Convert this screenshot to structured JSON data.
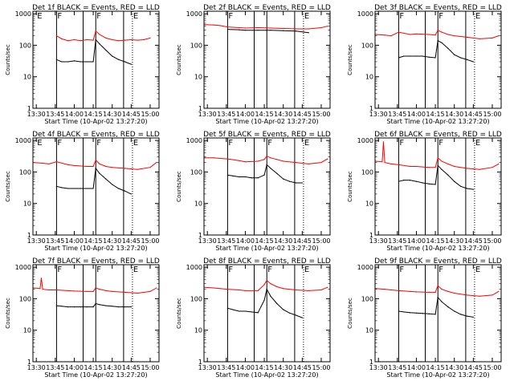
{
  "figure": {
    "shared_ylabel": "Counts/sec",
    "shared_xlabel": "Start Time (10-Apr-02 13:27:20)",
    "x_tick_labels": [
      "13:30",
      "13:45",
      "14:00",
      "14:15",
      "14:30",
      "14:45",
      "15:00"
    ],
    "y_tick_labels": [
      "1",
      "10",
      "100",
      "1000"
    ],
    "colors": {
      "events": "#000000",
      "lld": "#ff0000",
      "axes": "#000000",
      "background": "#ffffff"
    }
  },
  "chart_data": [
    {
      "type": "line",
      "title": "Det 1f BLACK = Events, RED = LLD",
      "xlabel": "Start Time (10-Apr-02 13:27:20)",
      "ylabel": "Counts/sec",
      "xlim": [
        "13:27:20",
        "15:07:00"
      ],
      "ylim": [
        1,
        1200
      ],
      "yscale": "log",
      "x_ticks": [
        "13:30",
        "13:45",
        "14:00",
        "14:15",
        "14:30",
        "14:45",
        "15:00"
      ],
      "marker_letters": [
        "E",
        "F",
        "F",
        "E"
      ],
      "marker_times": [
        "13:30",
        "13:46",
        "14:17",
        "14:46"
      ],
      "solid_lines": [
        "13:46",
        "14:07",
        "14:17",
        "14:39"
      ],
      "dotted_lines": [
        "14:46"
      ],
      "series": [
        {
          "name": "LLD",
          "color": "#ff0000",
          "x": [
            "13:46",
            "13:50",
            "13:55",
            "14:00",
            "14:05",
            "14:10",
            "14:15",
            "14:17",
            "14:20",
            "14:25",
            "14:30",
            "14:35",
            "14:40",
            "14:45",
            "14:50",
            "14:55",
            "15:00"
          ],
          "y": [
            200,
            160,
            140,
            150,
            140,
            150,
            145,
            280,
            220,
            170,
            150,
            140,
            145,
            150,
            145,
            150,
            170
          ]
        },
        {
          "name": "Events",
          "color": "#000000",
          "x": [
            "13:46",
            "13:50",
            "13:55",
            "14:00",
            "14:05",
            "14:10",
            "14:15",
            "14:17",
            "14:20",
            "14:25",
            "14:30",
            "14:35",
            "14:40",
            "14:45"
          ],
          "y": [
            35,
            30,
            30,
            32,
            30,
            30,
            30,
            150,
            110,
            70,
            45,
            35,
            30,
            25
          ]
        }
      ]
    },
    {
      "type": "line",
      "title": "Det 2f BLACK = Events, RED = LLD",
      "xlabel": "Start Time (10-Apr-02 13:27:20)",
      "ylabel": "Counts/sec",
      "xlim": [
        "13:27:20",
        "15:07:00"
      ],
      "ylim": [
        1,
        1200
      ],
      "yscale": "log",
      "x_ticks": [
        "13:30",
        "13:45",
        "14:00",
        "14:15",
        "14:30",
        "14:45",
        "15:00"
      ],
      "marker_letters": [
        "F",
        "E"
      ],
      "marker_times": [
        "13:46",
        "14:46"
      ],
      "solid_lines": [
        "13:46",
        "14:07",
        "14:17",
        "14:39"
      ],
      "dotted_lines": [
        "14:46"
      ],
      "series": [
        {
          "name": "LLD",
          "color": "#ff0000",
          "x": [
            "13:28",
            "13:35",
            "13:40",
            "13:46",
            "13:55",
            "14:00",
            "14:10",
            "14:20",
            "14:30",
            "14:40",
            "14:50",
            "15:00",
            "15:05"
          ],
          "y": [
            450,
            440,
            420,
            380,
            360,
            350,
            360,
            350,
            340,
            330,
            330,
            360,
            400
          ]
        },
        {
          "name": "Events",
          "color": "#000000",
          "x": [
            "13:46",
            "13:55",
            "14:00",
            "14:10",
            "14:20",
            "14:30",
            "14:40",
            "14:50"
          ],
          "y": [
            320,
            310,
            300,
            300,
            300,
            290,
            280,
            250
          ]
        }
      ]
    },
    {
      "type": "line",
      "title": "Det 3f BLACK = Events, RED = LLD",
      "xlabel": "Start Time (10-Apr-02 13:27:20)",
      "ylabel": "Counts/sec",
      "xlim": [
        "13:27:20",
        "15:07:00"
      ],
      "ylim": [
        1,
        1200
      ],
      "yscale": "log",
      "x_ticks": [
        "13:30",
        "13:45",
        "14:00",
        "14:15",
        "14:30",
        "14:45",
        "15:00"
      ],
      "marker_letters": [
        "F",
        "F",
        "E"
      ],
      "marker_times": [
        "13:46",
        "14:17",
        "14:46"
      ],
      "solid_lines": [
        "13:46",
        "14:07",
        "14:17",
        "14:39"
      ],
      "dotted_lines": [
        "14:46"
      ],
      "series": [
        {
          "name": "LLD",
          "color": "#ff0000",
          "x": [
            "13:28",
            "13:35",
            "13:40",
            "13:46",
            "13:55",
            "14:00",
            "14:10",
            "14:15",
            "14:17",
            "14:20",
            "14:25",
            "14:30",
            "14:40",
            "14:50",
            "15:00",
            "15:05"
          ],
          "y": [
            220,
            210,
            200,
            260,
            220,
            230,
            220,
            210,
            300,
            260,
            220,
            200,
            180,
            160,
            170,
            200
          ]
        },
        {
          "name": "Events",
          "color": "#000000",
          "x": [
            "13:46",
            "13:50",
            "13:55",
            "14:00",
            "14:05",
            "14:10",
            "14:15",
            "14:17",
            "14:20",
            "14:25",
            "14:30",
            "14:35",
            "14:40",
            "14:45"
          ],
          "y": [
            40,
            45,
            45,
            45,
            45,
            42,
            40,
            140,
            120,
            80,
            50,
            40,
            35,
            30
          ]
        }
      ]
    },
    {
      "type": "line",
      "title": "Det 4f BLACK = Events, RED = LLD",
      "xlabel": "Start Time (10-Apr-02 13:27:20)",
      "ylabel": "Counts/sec",
      "xlim": [
        "13:27:20",
        "15:07:00"
      ],
      "ylim": [
        1,
        1200
      ],
      "yscale": "log",
      "x_ticks": [
        "13:30",
        "13:45",
        "14:00",
        "14:15",
        "14:30",
        "14:45",
        "15:00"
      ],
      "marker_letters": [
        "E",
        "F",
        "F",
        "E"
      ],
      "marker_times": [
        "13:30",
        "13:46",
        "14:17",
        "14:46"
      ],
      "solid_lines": [
        "13:46",
        "14:07",
        "14:17",
        "14:39"
      ],
      "dotted_lines": [
        "14:46"
      ],
      "series": [
        {
          "name": "LLD",
          "color": "#ff0000",
          "x": [
            "13:28",
            "13:35",
            "13:40",
            "13:46",
            "13:55",
            "14:00",
            "14:10",
            "14:15",
            "14:17",
            "14:20",
            "14:25",
            "14:30",
            "14:40",
            "14:50",
            "15:00",
            "15:05"
          ],
          "y": [
            200,
            190,
            180,
            210,
            170,
            160,
            150,
            150,
            240,
            180,
            150,
            140,
            130,
            120,
            140,
            200
          ]
        },
        {
          "name": "Events",
          "color": "#000000",
          "x": [
            "13:46",
            "13:50",
            "13:55",
            "14:00",
            "14:05",
            "14:10",
            "14:15",
            "14:17",
            "14:20",
            "14:25",
            "14:30",
            "14:35",
            "14:40",
            "14:45"
          ],
          "y": [
            35,
            32,
            30,
            30,
            30,
            30,
            30,
            130,
            90,
            60,
            40,
            30,
            25,
            20
          ]
        }
      ]
    },
    {
      "type": "line",
      "title": "Det 5f BLACK = Events, RED = LLD",
      "xlabel": "Start Time (10-Apr-02 13:27:20)",
      "ylabel": "Counts/sec",
      "xlim": [
        "13:27:20",
        "15:07:00"
      ],
      "ylim": [
        1,
        1200
      ],
      "yscale": "log",
      "x_ticks": [
        "13:30",
        "13:45",
        "14:00",
        "14:15",
        "14:30",
        "14:45",
        "15:00"
      ],
      "marker_letters": [
        "F",
        "F",
        "E"
      ],
      "marker_times": [
        "13:46",
        "14:17",
        "14:46"
      ],
      "solid_lines": [
        "13:46",
        "14:07",
        "14:17",
        "14:39"
      ],
      "dotted_lines": [
        "14:46"
      ],
      "series": [
        {
          "name": "LLD",
          "color": "#ff0000",
          "x": [
            "13:28",
            "13:35",
            "13:40",
            "13:46",
            "13:55",
            "14:00",
            "14:10",
            "14:15",
            "14:17",
            "14:20",
            "14:25",
            "14:30",
            "14:40",
            "14:50",
            "15:00",
            "15:05"
          ],
          "y": [
            280,
            280,
            270,
            260,
            230,
            210,
            220,
            250,
            320,
            280,
            250,
            220,
            200,
            180,
            200,
            260
          ]
        },
        {
          "name": "Events",
          "color": "#000000",
          "x": [
            "13:46",
            "13:50",
            "13:55",
            "14:00",
            "14:05",
            "14:10",
            "14:15",
            "14:17",
            "14:20",
            "14:25",
            "14:30",
            "14:35",
            "14:40",
            "14:45"
          ],
          "y": [
            80,
            75,
            70,
            70,
            65,
            65,
            80,
            170,
            130,
            90,
            60,
            50,
            45,
            45
          ]
        }
      ]
    },
    {
      "type": "line",
      "title": "Det 6f BLACK = Events, RED = LLD",
      "xlabel": "Start Time (10-Apr-02 13:27:20)",
      "ylabel": "Counts/sec",
      "xlim": [
        "13:27:20",
        "15:07:00"
      ],
      "ylim": [
        1,
        1200
      ],
      "yscale": "log",
      "x_ticks": [
        "13:30",
        "13:45",
        "14:00",
        "14:15",
        "14:30",
        "14:45",
        "15:00"
      ],
      "marker_letters": [
        "F",
        "F",
        "E"
      ],
      "marker_times": [
        "13:46",
        "14:17",
        "14:46"
      ],
      "solid_lines": [
        "13:46",
        "14:07",
        "14:17",
        "14:39"
      ],
      "dotted_lines": [
        "14:46"
      ],
      "series": [
        {
          "name": "LLD",
          "color": "#ff0000",
          "x": [
            "13:28",
            "13:33",
            "13:34",
            "13:35",
            "13:40",
            "13:46",
            "13:55",
            "14:00",
            "14:10",
            "14:15",
            "14:17",
            "14:20",
            "14:25",
            "14:30",
            "14:40",
            "14:50",
            "15:00",
            "15:05"
          ],
          "y": [
            220,
            210,
            900,
            200,
            180,
            170,
            150,
            150,
            140,
            140,
            280,
            220,
            180,
            150,
            130,
            120,
            140,
            180
          ]
        },
        {
          "name": "Events",
          "color": "#000000",
          "x": [
            "13:46",
            "13:50",
            "13:55",
            "14:00",
            "14:05",
            "14:10",
            "14:15",
            "14:17",
            "14:20",
            "14:25",
            "14:30",
            "14:35",
            "14:40",
            "14:45"
          ],
          "y": [
            50,
            55,
            55,
            50,
            45,
            42,
            40,
            160,
            120,
            80,
            50,
            35,
            30,
            28
          ]
        }
      ]
    },
    {
      "type": "line",
      "title": "Det 7f BLACK = Events, RED = LLD",
      "xlabel": "Start Time (10-Apr-02 13:27:20)",
      "ylabel": "Counts/sec",
      "xlim": [
        "13:27:20",
        "15:07:00"
      ],
      "ylim": [
        1,
        1200
      ],
      "yscale": "log",
      "x_ticks": [
        "13:30",
        "13:45",
        "14:00",
        "14:15",
        "14:30",
        "14:45",
        "15:00"
      ],
      "marker_letters": [
        "F",
        "F",
        "E"
      ],
      "marker_times": [
        "13:46",
        "14:17",
        "14:46"
      ],
      "solid_lines": [
        "13:46",
        "14:07",
        "14:17",
        "14:39"
      ],
      "dotted_lines": [
        "14:46"
      ],
      "series": [
        {
          "name": "LLD",
          "color": "#ff0000",
          "x": [
            "13:28",
            "13:33",
            "13:34",
            "13:35",
            "13:40",
            "13:46",
            "13:55",
            "14:00",
            "14:10",
            "14:15",
            "14:17",
            "14:20",
            "14:25",
            "14:30",
            "14:40",
            "14:50",
            "15:00",
            "15:05"
          ],
          "y": [
            220,
            210,
            450,
            200,
            190,
            190,
            180,
            175,
            170,
            170,
            220,
            200,
            180,
            170,
            160,
            150,
            170,
            220
          ]
        },
        {
          "name": "Events",
          "color": "#000000",
          "x": [
            "13:46",
            "13:50",
            "13:55",
            "14:00",
            "14:05",
            "14:10",
            "14:15",
            "14:17",
            "14:20",
            "14:25",
            "14:30",
            "14:35",
            "14:40",
            "14:45"
          ],
          "y": [
            60,
            58,
            55,
            55,
            55,
            55,
            55,
            70,
            65,
            60,
            58,
            55,
            55,
            55
          ]
        }
      ]
    },
    {
      "type": "line",
      "title": "Det 8f BLACK = Events, RED = LLD",
      "xlabel": "Start Time (10-Apr-02 13:27:20)",
      "ylabel": "Counts/sec",
      "xlim": [
        "13:27:20",
        "15:07:00"
      ],
      "ylim": [
        1,
        1200
      ],
      "yscale": "log",
      "x_ticks": [
        "13:30",
        "13:45",
        "14:00",
        "14:15",
        "14:30",
        "14:45",
        "15:00"
      ],
      "marker_letters": [
        "F",
        "F",
        "E"
      ],
      "marker_times": [
        "13:46",
        "14:17",
        "14:46"
      ],
      "solid_lines": [
        "13:46",
        "14:07",
        "14:17",
        "14:39"
      ],
      "dotted_lines": [
        "14:46"
      ],
      "series": [
        {
          "name": "LLD",
          "color": "#ff0000",
          "x": [
            "13:28",
            "13:35",
            "13:40",
            "13:46",
            "13:55",
            "14:00",
            "14:10",
            "14:15",
            "14:17",
            "14:20",
            "14:25",
            "14:30",
            "14:40",
            "14:50",
            "15:00",
            "15:05"
          ],
          "y": [
            230,
            220,
            210,
            200,
            190,
            180,
            180,
            280,
            380,
            300,
            240,
            210,
            190,
            180,
            190,
            230
          ]
        },
        {
          "name": "Events",
          "color": "#000000",
          "x": [
            "13:46",
            "13:50",
            "13:55",
            "14:00",
            "14:05",
            "14:10",
            "14:15",
            "14:17",
            "14:20",
            "14:25",
            "14:30",
            "14:35",
            "14:40",
            "14:45"
          ],
          "y": [
            50,
            45,
            40,
            40,
            38,
            36,
            90,
            200,
            120,
            70,
            45,
            35,
            30,
            25
          ]
        }
      ]
    },
    {
      "type": "line",
      "title": "Det 9f BLACK = Events, RED = LLD",
      "xlabel": "Start Time (10-Apr-02 13:27:20)",
      "ylabel": "Counts/sec",
      "xlim": [
        "13:27:20",
        "15:07:00"
      ],
      "ylim": [
        1,
        1200
      ],
      "yscale": "log",
      "x_ticks": [
        "13:30",
        "13:45",
        "14:00",
        "14:15",
        "14:30",
        "14:45",
        "15:00"
      ],
      "marker_letters": [
        "F",
        "F",
        "E"
      ],
      "marker_times": [
        "13:46",
        "14:17",
        "14:46"
      ],
      "solid_lines": [
        "13:46",
        "14:07",
        "14:17",
        "14:39"
      ],
      "dotted_lines": [
        "14:46"
      ],
      "series": [
        {
          "name": "LLD",
          "color": "#ff0000",
          "x": [
            "13:28",
            "13:35",
            "13:40",
            "13:46",
            "13:55",
            "14:00",
            "14:10",
            "14:15",
            "14:17",
            "14:20",
            "14:25",
            "14:30",
            "14:40",
            "14:50",
            "15:00",
            "15:05"
          ],
          "y": [
            210,
            200,
            190,
            180,
            170,
            165,
            160,
            160,
            260,
            200,
            170,
            150,
            130,
            120,
            130,
            170
          ]
        },
        {
          "name": "Events",
          "color": "#000000",
          "x": [
            "13:46",
            "13:50",
            "13:55",
            "14:00",
            "14:05",
            "14:10",
            "14:15",
            "14:17",
            "14:20",
            "14:25",
            "14:30",
            "14:35",
            "14:40",
            "14:45"
          ],
          "y": [
            40,
            38,
            36,
            35,
            34,
            33,
            32,
            110,
            80,
            55,
            40,
            32,
            28,
            26
          ]
        }
      ]
    }
  ]
}
